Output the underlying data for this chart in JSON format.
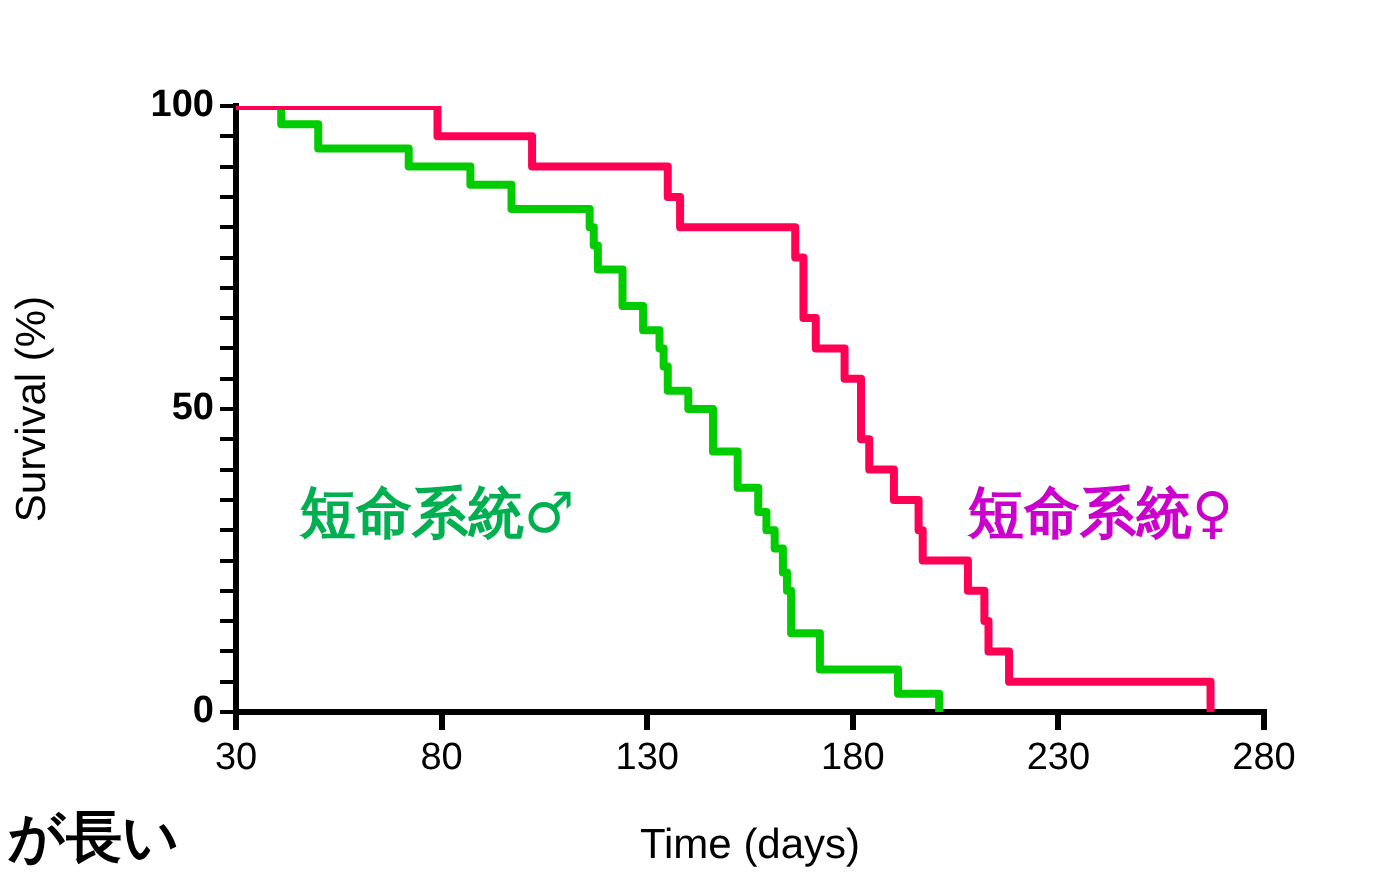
{
  "chart_data": {
    "type": "step",
    "xlabel": "Time (days)",
    "ylabel": "Survival (%)",
    "xlim": [
      30,
      280
    ],
    "xticks": [
      30,
      80,
      130,
      180,
      230,
      280
    ],
    "ylim": [
      0,
      100
    ],
    "yticks": [
      0,
      {
        "value": 5,
        "label": null
      },
      {
        "value": 10,
        "label": null
      },
      {
        "value": 15,
        "label": null
      },
      {
        "value": 20,
        "label": null
      },
      {
        "value": 25,
        "label": null
      },
      {
        "value": 30,
        "label": null
      },
      {
        "value": 35,
        "label": null
      },
      {
        "value": 40,
        "label": null
      },
      {
        "value": 45,
        "label": null
      },
      50,
      {
        "value": 55,
        "label": null
      },
      {
        "value": 60,
        "label": null
      },
      {
        "value": 65,
        "label": null
      },
      {
        "value": 70,
        "label": null
      },
      {
        "value": 75,
        "label": null
      },
      {
        "value": 80,
        "label": null
      },
      {
        "value": 85,
        "label": null
      },
      {
        "value": 90,
        "label": null
      },
      {
        "value": 95,
        "label": null
      },
      100
    ],
    "grid": false,
    "legend": false,
    "series": [
      {
        "color": "#ff0055",
        "x": [
          30,
          79,
          102,
          135,
          138,
          166,
          168,
          171,
          178,
          182,
          184,
          190,
          196,
          197,
          208,
          212,
          213,
          218,
          267
        ],
        "values": [
          100,
          95,
          90,
          85,
          80,
          75,
          65,
          60,
          55,
          45,
          40,
          35,
          30,
          25,
          20,
          15,
          10,
          5,
          0
        ]
      },
      {
        "color": "#00cc00",
        "x": [
          30,
          41,
          50,
          72,
          87,
          97,
          116,
          117,
          118,
          124,
          129,
          133,
          134,
          135,
          140,
          146,
          152,
          157,
          159,
          161,
          163,
          164,
          165,
          172,
          191,
          201
        ],
        "values": [
          100,
          97,
          93,
          90,
          87,
          83,
          80,
          77,
          73,
          67,
          63,
          60,
          57,
          53,
          50,
          43,
          37,
          33,
          30,
          27,
          23,
          20,
          13,
          7,
          3,
          0
        ]
      }
    ],
    "annotations": [
      "短命系統♂",
      "短命系統♀",
      "が長い"
    ]
  }
}
